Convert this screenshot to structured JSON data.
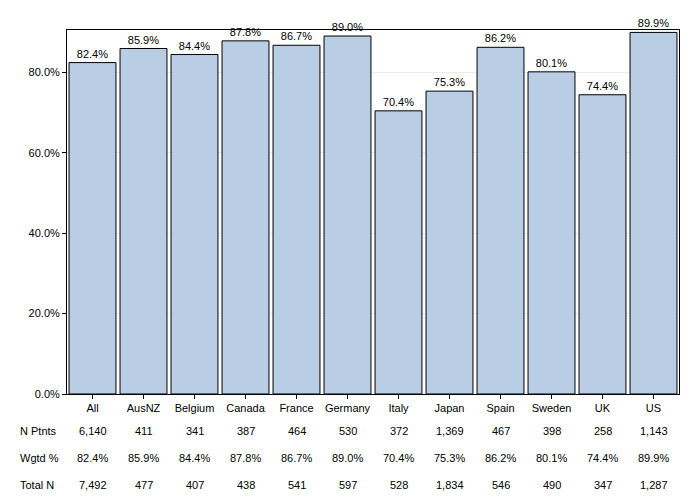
{
  "chart_data": {
    "type": "bar",
    "categories": [
      "All",
      "AusNZ",
      "Belgium",
      "Canada",
      "France",
      "Germany",
      "Italy",
      "Japan",
      "Spain",
      "Sweden",
      "UK",
      "US"
    ],
    "values": [
      82.4,
      85.9,
      84.4,
      87.8,
      86.7,
      89.0,
      70.4,
      75.3,
      86.2,
      80.1,
      74.4,
      89.9
    ],
    "value_labels": [
      "82.4%",
      "85.9%",
      "84.4%",
      "87.8%",
      "86.7%",
      "89.0%",
      "70.4%",
      "75.3%",
      "86.2%",
      "80.1%",
      "74.4%",
      "89.9%"
    ],
    "color": "#b9cde5",
    "ylim": [
      0,
      90.5
    ],
    "yticks": [
      {
        "value": 0,
        "label": "0.0%"
      },
      {
        "value": 20,
        "label": "20.0%"
      },
      {
        "value": 40,
        "label": "40.0%"
      },
      {
        "value": 60,
        "label": "60.0%"
      },
      {
        "value": 80,
        "label": "80.0%"
      }
    ],
    "grid": true,
    "data_labels": true
  },
  "table": {
    "rows": [
      {
        "label": "N Ptnts",
        "cells": [
          "6,140",
          "411",
          "341",
          "387",
          "464",
          "530",
          "372",
          "1,369",
          "467",
          "398",
          "258",
          "1,143"
        ]
      },
      {
        "label": "Wgtd %",
        "cells": [
          "82.4%",
          "85.9%",
          "84.4%",
          "87.8%",
          "86.7%",
          "89.0%",
          "70.4%",
          "75.3%",
          "86.2%",
          "80.1%",
          "74.4%",
          "89.9%"
        ]
      },
      {
        "label": "Total N",
        "cells": [
          "7,492",
          "477",
          "407",
          "438",
          "541",
          "597",
          "528",
          "1,834",
          "546",
          "490",
          "347",
          "1,287"
        ]
      }
    ]
  }
}
